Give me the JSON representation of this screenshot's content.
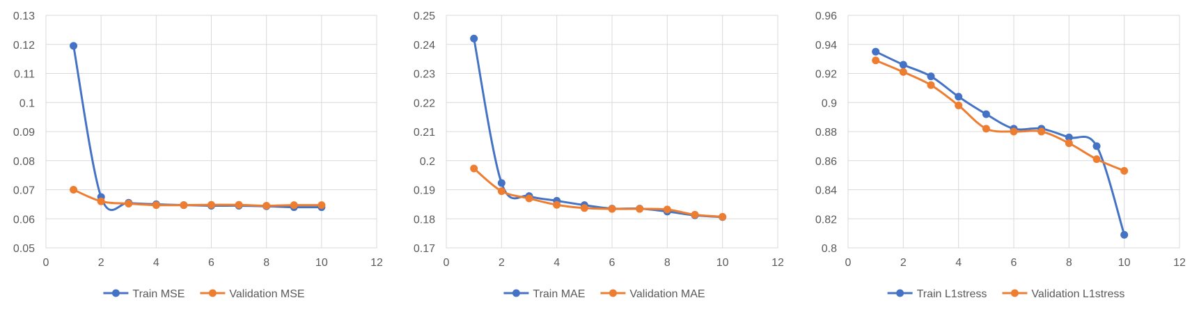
{
  "chart_data": [
    {
      "type": "line",
      "smooth": true,
      "x": [
        1,
        2,
        3,
        4,
        5,
        6,
        7,
        8,
        9,
        10
      ],
      "xlim": [
        0,
        12
      ],
      "xticks": [
        0,
        2,
        4,
        6,
        8,
        10,
        12
      ],
      "ylim": [
        0.05,
        0.13
      ],
      "yticks": [
        0.05,
        0.06,
        0.07,
        0.08,
        0.09,
        0.1,
        0.11,
        0.12,
        0.13
      ],
      "grid": true,
      "legend": "bottom",
      "series": [
        {
          "name": "Train MSE",
          "color": "#4472c4",
          "values": [
            0.1195,
            0.0675,
            0.0655,
            0.065,
            0.0647,
            0.0645,
            0.0645,
            0.0643,
            0.064,
            0.064
          ]
        },
        {
          "name": "Validation MSE",
          "color": "#ed7d31",
          "values": [
            0.07,
            0.066,
            0.0652,
            0.0647,
            0.0647,
            0.0648,
            0.0648,
            0.0645,
            0.0647,
            0.0647
          ]
        }
      ]
    },
    {
      "type": "line",
      "smooth": true,
      "x": [
        1,
        2,
        3,
        4,
        5,
        6,
        7,
        8,
        9,
        10
      ],
      "xlim": [
        0,
        12
      ],
      "xticks": [
        0,
        2,
        4,
        6,
        8,
        10,
        12
      ],
      "ylim": [
        0.17,
        0.25
      ],
      "yticks": [
        0.17,
        0.18,
        0.19,
        0.2,
        0.21,
        0.22,
        0.23,
        0.24,
        0.25
      ],
      "grid": true,
      "legend": "bottom",
      "series": [
        {
          "name": "Train MAE",
          "color": "#4472c4",
          "values": [
            0.242,
            0.1923,
            0.1878,
            0.1862,
            0.1847,
            0.1835,
            0.1835,
            0.1825,
            0.1812,
            0.1806
          ]
        },
        {
          "name": "Validation MAE",
          "color": "#ed7d31",
          "values": [
            0.1973,
            0.1895,
            0.187,
            0.1848,
            0.1837,
            0.1834,
            0.1834,
            0.1832,
            0.1814,
            0.1807
          ]
        }
      ]
    },
    {
      "type": "line",
      "smooth": true,
      "x": [
        1,
        2,
        3,
        4,
        5,
        6,
        7,
        8,
        9,
        10
      ],
      "xlim": [
        0,
        12
      ],
      "xticks": [
        0,
        2,
        4,
        6,
        8,
        10,
        12
      ],
      "ylim": [
        0.8,
        0.96
      ],
      "yticks": [
        0.8,
        0.82,
        0.84,
        0.86,
        0.88,
        0.9,
        0.92,
        0.94,
        0.96
      ],
      "grid": true,
      "legend": "bottom",
      "series": [
        {
          "name": "Train L1stress",
          "color": "#4472c4",
          "values": [
            0.935,
            0.926,
            0.918,
            0.904,
            0.892,
            0.882,
            0.882,
            0.876,
            0.87,
            0.809
          ]
        },
        {
          "name": "Validation L1stress",
          "color": "#ed7d31",
          "values": [
            0.929,
            0.921,
            0.912,
            0.898,
            0.882,
            0.88,
            0.88,
            0.872,
            0.861,
            0.853
          ]
        }
      ]
    }
  ]
}
